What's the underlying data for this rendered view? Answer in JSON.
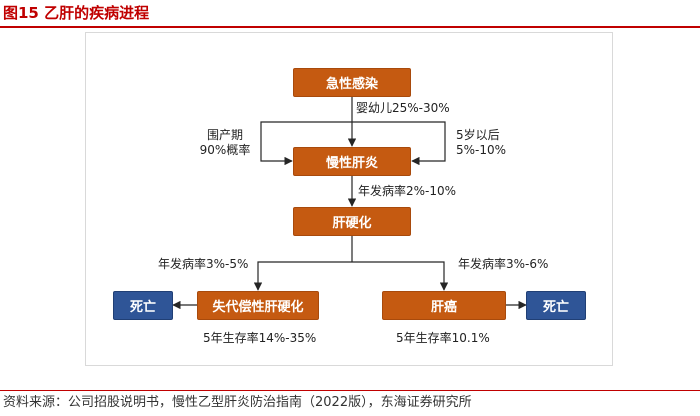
{
  "figure": {
    "title": "图15  乙肝的疾病进程",
    "source": "资料来源：公司招股说明书，慢性乙型肝炎防治指南（2022版），东海证券研究所"
  },
  "nodes": {
    "acute_infection": "急性感染",
    "chronic_hepatitis": "慢性肝炎",
    "cirrhosis": "肝硬化",
    "decompensated_cirrhosis": "失代偿性肝硬化",
    "liver_cancer": "肝癌",
    "death_left": "死亡",
    "death_right": "死亡"
  },
  "edge_labels": {
    "infant_rate": "婴幼儿25%-30%",
    "perinatal_line1": "围产期",
    "perinatal_line2": "90%概率",
    "after5_line1": "5岁以后",
    "after5_line2": "5%-10%",
    "to_cirrhosis_rate": "年发病率2%-10%",
    "to_decomp_rate": "年发病率3%-5%",
    "to_cancer_rate": "年发病率3%-6%",
    "decomp_survival": "5年生存率14%-35%",
    "cancer_survival": "5年生存率10.1%"
  }
}
